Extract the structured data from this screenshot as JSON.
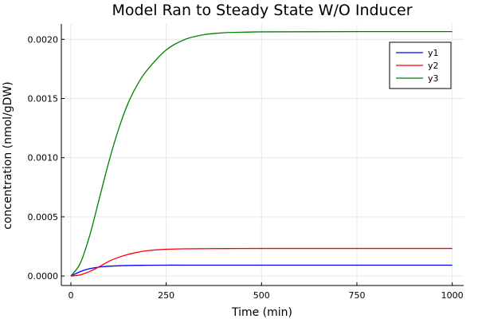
{
  "chart_data": {
    "type": "line",
    "title": "Model Ran to Steady State W/O Inducer",
    "xlabel": "Time (min)",
    "ylabel": "concentration (nmol/gDW)",
    "xlim": [
      -25,
      1030
    ],
    "ylim": [
      -8e-05,
      0.00213
    ],
    "xticks": [
      0,
      250,
      500,
      750,
      1000
    ],
    "xtick_labels": [
      "0",
      "250",
      "500",
      "750",
      "1000"
    ],
    "yticks": [
      0.0,
      0.0005,
      0.001,
      0.0015,
      0.002
    ],
    "ytick_labels": [
      "0.0000",
      "0.0005",
      "0.0010",
      "0.0015",
      "0.0020"
    ],
    "grid": true,
    "legend_position": "top-right",
    "series": [
      {
        "name": "y1",
        "color": "#0000ff",
        "x": [
          0,
          25,
          50,
          75,
          100,
          150,
          200,
          250,
          300,
          400,
          500,
          750,
          1000
        ],
        "y": [
          0.0,
          3.8e-05,
          6.3e-05,
          7.6e-05,
          8.3e-05,
          8.9e-05,
          9.1e-05,
          9.2e-05,
          9.2e-05,
          9.2e-05,
          9.2e-05,
          9.2e-05,
          9.2e-05
        ]
      },
      {
        "name": "y2",
        "color": "#ff0000",
        "x": [
          0,
          25,
          50,
          75,
          100,
          125,
          150,
          175,
          200,
          250,
          300,
          400,
          500,
          750,
          1000
        ],
        "y": [
          0.0,
          1e-05,
          4e-05,
          8e-05,
          0.000125,
          0.000158,
          0.000183,
          0.000201,
          0.000214,
          0.000226,
          0.00023,
          0.000232,
          0.000233,
          0.000233,
          0.000233
        ]
      },
      {
        "name": "y3",
        "color": "#008000",
        "x": [
          0,
          25,
          50,
          75,
          100,
          125,
          150,
          175,
          200,
          250,
          300,
          350,
          400,
          450,
          500,
          600,
          750,
          1000
        ],
        "y": [
          0.0,
          0.00011,
          0.00035,
          0.00066,
          0.00097,
          0.00124,
          0.00146,
          0.00162,
          0.00174,
          0.00191,
          0.002,
          0.00204,
          0.002055,
          0.00206,
          0.002063,
          0.002064,
          0.002065,
          0.002065
        ]
      }
    ]
  }
}
